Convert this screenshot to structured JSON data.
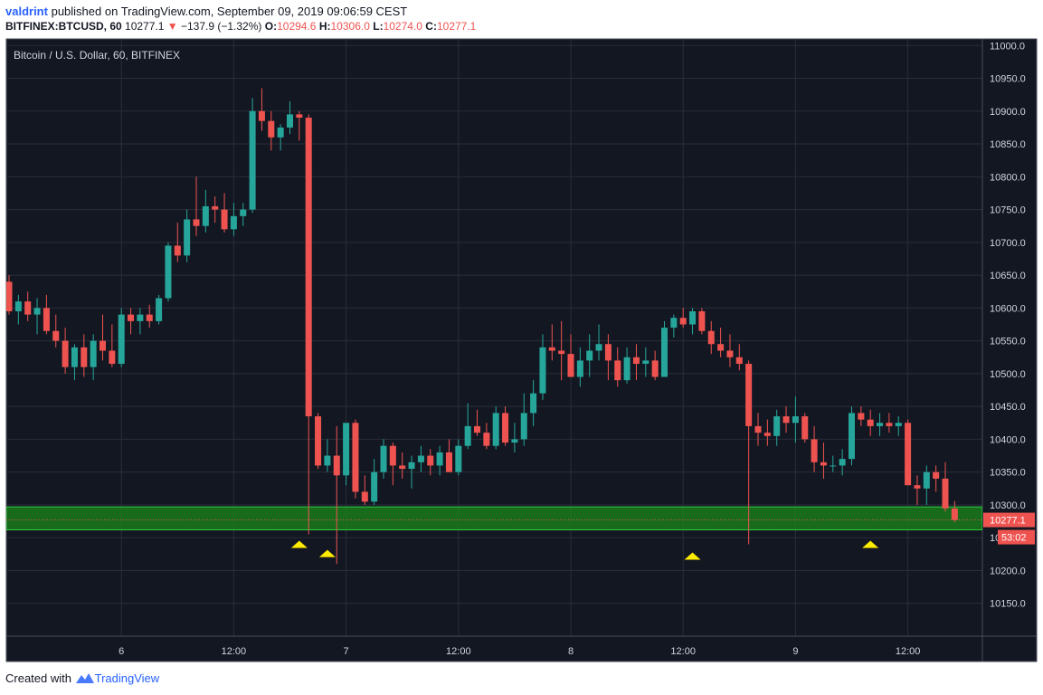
{
  "header": {
    "author": "valdrint",
    "published_text": "published on TradingView.com, September 09, 2019 09:06:59 CEST",
    "symbol": "BITFINEX:BTCUSD, 60",
    "last": "10277.1",
    "down_arrow": "▼",
    "change": "−137.9 (−1.32%)",
    "o_label": "O:",
    "o": "10294.6",
    "h_label": "H:",
    "h": "10306.0",
    "l_label": "L:",
    "l": "10274.0",
    "c_label": "C:",
    "c": "10277.1"
  },
  "footer": {
    "created_with": "Created with",
    "brand": "TradingView"
  },
  "colors": {
    "background": "#131722",
    "grid": "#2a2e39",
    "up": "#26a69a",
    "down": "#ef5350",
    "support_zone": "#1b7a1b",
    "marker": "#ffeb00",
    "axis_text": "#d1d4dc"
  },
  "chart_data": {
    "type": "candlestick",
    "title": "Bitcoin / U.S. Dollar, 60, BITFINEX",
    "ylim": [
      10100,
      11010
    ],
    "yticks": [
      10150,
      10200,
      10250,
      10300,
      10350,
      10400,
      10450,
      10500,
      10550,
      10600,
      10650,
      10700,
      10750,
      10800,
      10850,
      10900,
      10950,
      11000
    ],
    "ytick_labels": [
      "10150.0",
      "10200.0",
      "",
      "10300.0",
      "10350.0",
      "10400.0",
      "10450.0",
      "10500.0",
      "10550.0",
      "10600.0",
      "10650.0",
      "10700.0",
      "10750.0",
      "10800.0",
      "10850.0",
      "10900.0",
      "10950.0",
      "11000.0"
    ],
    "x_labels": [
      {
        "label": "6",
        "bar": 12
      },
      {
        "label": "12:00",
        "bar": 24
      },
      {
        "label": "7",
        "bar": 36
      },
      {
        "label": "12:00",
        "bar": 48
      },
      {
        "label": "8",
        "bar": 60
      },
      {
        "label": "12:00",
        "bar": 72
      },
      {
        "label": "9",
        "bar": 84
      },
      {
        "label": "12:00",
        "bar": 96
      }
    ],
    "last_price_label": "10277.1",
    "countdown_label": "53:02",
    "partial_tick_label": "10",
    "last_price": 10277.1,
    "support_zone": [
      10262,
      10297
    ],
    "markers": [
      {
        "bar": 31,
        "price": 10240
      },
      {
        "bar": 34,
        "price": 10226
      },
      {
        "bar": 73,
        "price": 10222
      },
      {
        "bar": 92,
        "price": 10240
      }
    ],
    "candles": [
      [
        10640,
        10650,
        10590,
        10595
      ],
      [
        10595,
        10620,
        10575,
        10610
      ],
      [
        10610,
        10625,
        10580,
        10590
      ],
      [
        10590,
        10615,
        10560,
        10600
      ],
      [
        10600,
        10620,
        10560,
        10565
      ],
      [
        10565,
        10590,
        10540,
        10550
      ],
      [
        10550,
        10570,
        10500,
        10510
      ],
      [
        10510,
        10545,
        10490,
        10540
      ],
      [
        10540,
        10560,
        10495,
        10510
      ],
      [
        10510,
        10560,
        10490,
        10550
      ],
      [
        10550,
        10590,
        10520,
        10535
      ],
      [
        10535,
        10575,
        10510,
        10515
      ],
      [
        10515,
        10600,
        10510,
        10590
      ],
      [
        10590,
        10600,
        10560,
        10580
      ],
      [
        10580,
        10600,
        10560,
        10590
      ],
      [
        10590,
        10605,
        10570,
        10580
      ],
      [
        10580,
        10620,
        10575,
        10615
      ],
      [
        10615,
        10700,
        10610,
        10695
      ],
      [
        10695,
        10730,
        10670,
        10680
      ],
      [
        10680,
        10750,
        10670,
        10735
      ],
      [
        10735,
        10800,
        10710,
        10725
      ],
      [
        10725,
        10780,
        10715,
        10755
      ],
      [
        10755,
        10770,
        10730,
        10750
      ],
      [
        10750,
        10775,
        10715,
        10720
      ],
      [
        10720,
        10760,
        10710,
        10740
      ],
      [
        10740,
        10760,
        10725,
        10750
      ],
      [
        10750,
        10920,
        10745,
        10900
      ],
      [
        10900,
        10935,
        10870,
        10885
      ],
      [
        10885,
        10900,
        10840,
        10860
      ],
      [
        10860,
        10880,
        10840,
        10875
      ],
      [
        10875,
        10915,
        10865,
        10895
      ],
      [
        10895,
        10900,
        10855,
        10890
      ],
      [
        10890,
        10895,
        10255,
        10435
      ],
      [
        10435,
        10440,
        10355,
        10360
      ],
      [
        10360,
        10400,
        10350,
        10375
      ],
      [
        10375,
        10420,
        10210,
        10345
      ],
      [
        10345,
        10420,
        10330,
        10425
      ],
      [
        10425,
        10430,
        10310,
        10320
      ],
      [
        10320,
        10345,
        10300,
        10305
      ],
      [
        10305,
        10370,
        10300,
        10350
      ],
      [
        10350,
        10400,
        10340,
        10390
      ],
      [
        10390,
        10395,
        10330,
        10360
      ],
      [
        10360,
        10380,
        10340,
        10355
      ],
      [
        10355,
        10375,
        10325,
        10365
      ],
      [
        10365,
        10390,
        10350,
        10375
      ],
      [
        10375,
        10385,
        10345,
        10360
      ],
      [
        10360,
        10390,
        10345,
        10380
      ],
      [
        10380,
        10400,
        10350,
        10350
      ],
      [
        10350,
        10400,
        10345,
        10390
      ],
      [
        10390,
        10455,
        10385,
        10420
      ],
      [
        10420,
        10445,
        10405,
        10410
      ],
      [
        10410,
        10425,
        10385,
        10390
      ],
      [
        10390,
        10450,
        10385,
        10440
      ],
      [
        10440,
        10450,
        10390,
        10395
      ],
      [
        10395,
        10425,
        10380,
        10400
      ],
      [
        10400,
        10470,
        10390,
        10440
      ],
      [
        10440,
        10490,
        10420,
        10470
      ],
      [
        10470,
        10560,
        10460,
        10540
      ],
      [
        10540,
        10575,
        10520,
        10535
      ],
      [
        10535,
        10580,
        10490,
        10530
      ],
      [
        10530,
        10560,
        10495,
        10495
      ],
      [
        10495,
        10540,
        10480,
        10520
      ],
      [
        10520,
        10560,
        10495,
        10535
      ],
      [
        10535,
        10575,
        10520,
        10545
      ],
      [
        10545,
        10560,
        10490,
        10520
      ],
      [
        10520,
        10540,
        10480,
        10490
      ],
      [
        10490,
        10540,
        10485,
        10525
      ],
      [
        10525,
        10545,
        10490,
        10515
      ],
      [
        10515,
        10540,
        10495,
        10520
      ],
      [
        10520,
        10535,
        10490,
        10495
      ],
      [
        10495,
        10580,
        10495,
        10570
      ],
      [
        10570,
        10590,
        10555,
        10585
      ],
      [
        10585,
        10600,
        10570,
        10575
      ],
      [
        10575,
        10600,
        10560,
        10595
      ],
      [
        10595,
        10600,
        10560,
        10565
      ],
      [
        10565,
        10580,
        10530,
        10545
      ],
      [
        10545,
        10570,
        10525,
        10535
      ],
      [
        10535,
        10560,
        10510,
        10525
      ],
      [
        10525,
        10545,
        10505,
        10515
      ],
      [
        10515,
        10520,
        10240,
        10420
      ],
      [
        10420,
        10440,
        10390,
        10410
      ],
      [
        10410,
        10430,
        10390,
        10405
      ],
      [
        10405,
        10445,
        10390,
        10435
      ],
      [
        10435,
        10450,
        10410,
        10425
      ],
      [
        10425,
        10465,
        10395,
        10435
      ],
      [
        10435,
        10440,
        10395,
        10400
      ],
      [
        10400,
        10420,
        10350,
        10365
      ],
      [
        10365,
        10395,
        10340,
        10360
      ],
      [
        10360,
        10375,
        10350,
        10360
      ],
      [
        10360,
        10385,
        10345,
        10370
      ],
      [
        10370,
        10450,
        10360,
        10440
      ],
      [
        10440,
        10450,
        10420,
        10430
      ],
      [
        10430,
        10445,
        10405,
        10420
      ],
      [
        10420,
        10440,
        10405,
        10425
      ],
      [
        10425,
        10440,
        10410,
        10420
      ],
      [
        10420,
        10435,
        10405,
        10425
      ],
      [
        10425,
        10430,
        10330,
        10330
      ],
      [
        10330,
        10345,
        10300,
        10325
      ],
      [
        10325,
        10360,
        10300,
        10350
      ],
      [
        10350,
        10360,
        10320,
        10340
      ],
      [
        10340,
        10365,
        10290,
        10294.6
      ],
      [
        10294.6,
        10306,
        10274,
        10277.1
      ]
    ]
  }
}
